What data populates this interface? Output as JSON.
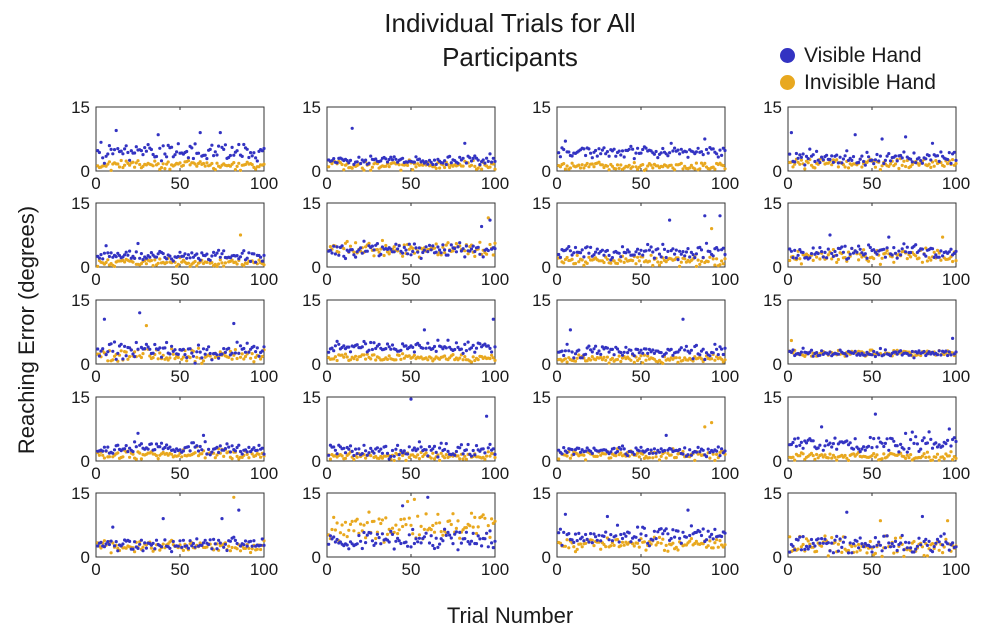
{
  "figure": {
    "title_line1": "Individual Trials for All",
    "title_line2": "Participants",
    "xlabel": "Trial Number",
    "ylabel": "Reaching Error (degrees)"
  },
  "legend": [
    {
      "name": "Visible Hand",
      "color": "#3333c2"
    },
    {
      "name": "Invisible Hand",
      "color": "#e8a81f"
    }
  ],
  "chart_data": {
    "type": "scatter",
    "layout": "5 rows x 4 columns of small multiples (20 participants)",
    "xlim": [
      0,
      100
    ],
    "ylim": [
      0,
      15
    ],
    "xticks": [
      0,
      50,
      100
    ],
    "yticks": [
      0,
      15
    ],
    "grid": false,
    "legend_position": "top-right",
    "series": [
      {
        "name": "Visible Hand",
        "color": "#3333c2"
      },
      {
        "name": "Invisible Hand",
        "color": "#e8a81f"
      }
    ],
    "panels": [
      {
        "visible": {
          "mean": 4.5,
          "spread": 2.0,
          "peaks": [
            [
              12,
              9.5
            ],
            [
              37,
              8.5
            ],
            [
              62,
              9.0
            ],
            [
              74,
              9.0
            ]
          ]
        },
        "invisible": {
          "mean": 1.5,
          "spread": 1.0
        }
      },
      {
        "visible": {
          "mean": 2.5,
          "spread": 1.0,
          "peaks": [
            [
              15,
              10.0
            ],
            [
              82,
              6.5
            ]
          ]
        },
        "invisible": {
          "mean": 1.5,
          "spread": 1.0
        }
      },
      {
        "visible": {
          "mean": 4.5,
          "spread": 1.2,
          "peaks": [
            [
              5,
              7.0
            ],
            [
              68,
              6.5
            ],
            [
              88,
              7.5
            ]
          ]
        },
        "invisible": {
          "mean": 1.0,
          "spread": 0.8
        }
      },
      {
        "visible": {
          "mean": 3.0,
          "spread": 1.5,
          "peaks": [
            [
              2,
              9.0
            ],
            [
              40,
              8.5
            ],
            [
              56,
              7.5
            ],
            [
              70,
              8.0
            ],
            [
              86,
              6.5
            ]
          ]
        },
        "invisible": {
          "mean": 1.8,
          "spread": 1.2
        }
      },
      {
        "visible": {
          "mean": 2.5,
          "spread": 1.2,
          "peaks": [
            [
              6,
              5.0
            ],
            [
              25,
              5.5
            ]
          ]
        },
        "invisible": {
          "mean": 1.0,
          "spread": 0.8,
          "peaks": [
            [
              86,
              7.5
            ]
          ]
        }
      },
      {
        "visible": {
          "mean": 4.0,
          "spread": 1.5,
          "peaks": [
            [
              92,
              9.5
            ],
            [
              97,
              11.0
            ]
          ]
        },
        "invisible": {
          "mean": 4.2,
          "spread": 1.5,
          "peaks": [
            [
              96,
              11.5
            ]
          ]
        }
      },
      {
        "visible": {
          "mean": 3.5,
          "spread": 1.5,
          "peaks": [
            [
              67,
              11.0
            ],
            [
              88,
              12.0
            ],
            [
              97,
              12.0
            ]
          ]
        },
        "invisible": {
          "mean": 1.5,
          "spread": 1.0,
          "peaks": [
            [
              92,
              9.0
            ]
          ]
        }
      },
      {
        "visible": {
          "mean": 3.5,
          "spread": 1.5,
          "peaks": [
            [
              25,
              7.5
            ],
            [
              60,
              7.0
            ]
          ]
        },
        "invisible": {
          "mean": 2.5,
          "spread": 1.5,
          "peaks": [
            [
              92,
              7.0
            ]
          ]
        }
      },
      {
        "visible": {
          "mean": 3.0,
          "spread": 1.8,
          "peaks": [
            [
              5,
              10.5
            ],
            [
              26,
              12.0
            ],
            [
              82,
              9.5
            ]
          ]
        },
        "invisible": {
          "mean": 2.0,
          "spread": 1.5,
          "peaks": [
            [
              30,
              9.0
            ]
          ]
        }
      },
      {
        "visible": {
          "mean": 4.0,
          "spread": 1.2,
          "peaks": [
            [
              58,
              8.0
            ],
            [
              99,
              10.5
            ]
          ]
        },
        "invisible": {
          "mean": 1.5,
          "spread": 0.8
        }
      },
      {
        "visible": {
          "mean": 3.0,
          "spread": 1.5,
          "peaks": [
            [
              8,
              8.0
            ],
            [
              75,
              10.5
            ]
          ]
        },
        "invisible": {
          "mean": 1.2,
          "spread": 0.8
        }
      },
      {
        "visible": {
          "mean": 2.5,
          "spread": 0.8,
          "peaks": [
            [
              98,
              6.0
            ]
          ]
        },
        "invisible": {
          "mean": 2.5,
          "spread": 0.8,
          "peaks": [
            [
              2,
              5.5
            ]
          ]
        }
      },
      {
        "visible": {
          "mean": 3.0,
          "spread": 1.2,
          "peaks": [
            [
              25,
              6.5
            ],
            [
              64,
              6.0
            ]
          ]
        },
        "invisible": {
          "mean": 1.5,
          "spread": 1.0
        }
      },
      {
        "visible": {
          "mean": 2.5,
          "spread": 1.5,
          "peaks": [
            [
              50,
              14.5
            ],
            [
              95,
              10.5
            ]
          ]
        },
        "invisible": {
          "mean": 1.2,
          "spread": 0.8
        }
      },
      {
        "visible": {
          "mean": 2.5,
          "spread": 1.0,
          "peaks": [
            [
              65,
              6.0
            ]
          ]
        },
        "invisible": {
          "mean": 1.5,
          "spread": 1.0,
          "peaks": [
            [
              88,
              8.0
            ],
            [
              92,
              9.0
            ]
          ]
        }
      },
      {
        "visible": {
          "mean": 4.0,
          "spread": 2.0,
          "peaks": [
            [
              20,
              8.0
            ],
            [
              52,
              11.0
            ],
            [
              96,
              7.5
            ]
          ]
        },
        "invisible": {
          "mean": 1.0,
          "spread": 0.8
        }
      },
      {
        "visible": {
          "mean": 3.0,
          "spread": 1.2,
          "peaks": [
            [
              10,
              7.0
            ],
            [
              40,
              9.0
            ],
            [
              75,
              9.0
            ],
            [
              85,
              11.0
            ]
          ]
        },
        "invisible": {
          "mean": 2.5,
          "spread": 1.2,
          "peaks": [
            [
              82,
              14.0
            ]
          ]
        }
      },
      {
        "visible": {
          "mean": 4.0,
          "spread": 2.0,
          "peaks": [
            [
              45,
              12.0
            ],
            [
              60,
              14.0
            ]
          ]
        },
        "invisible": {
          "mean": 7.0,
          "spread": 3.0,
          "peaks": [
            [
              48,
              13.0
            ],
            [
              52,
              13.5
            ]
          ]
        }
      },
      {
        "visible": {
          "mean": 5.0,
          "spread": 2.0,
          "peaks": [
            [
              5,
              10.0
            ],
            [
              30,
              9.5
            ],
            [
              78,
              11.0
            ]
          ]
        },
        "invisible": {
          "mean": 3.0,
          "spread": 1.5
        }
      },
      {
        "visible": {
          "mean": 3.0,
          "spread": 2.0,
          "peaks": [
            [
              35,
              10.5
            ],
            [
              80,
              9.5
            ]
          ]
        },
        "invisible": {
          "mean": 2.5,
          "spread": 2.0,
          "peaks": [
            [
              55,
              8.5
            ],
            [
              95,
              8.5
            ]
          ]
        }
      }
    ]
  }
}
